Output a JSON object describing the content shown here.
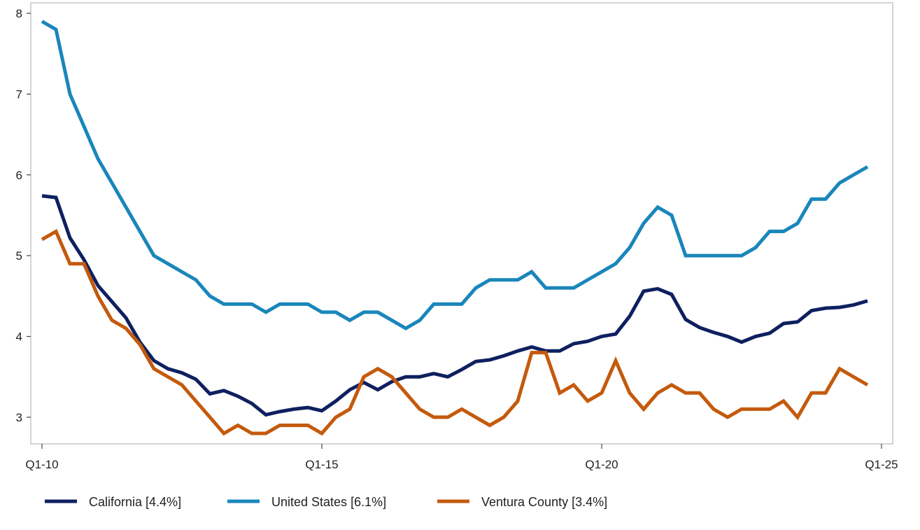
{
  "chart_data": {
    "type": "line",
    "title": "",
    "xlabel": "",
    "ylabel": "",
    "xlim": [
      0,
      60
    ],
    "ylim": [
      2.67,
      8.13
    ],
    "grid": false,
    "legend_position": "bottom",
    "x_ticks": [
      {
        "x": 0,
        "label": "Q1-10"
      },
      {
        "x": 20,
        "label": "Q1-15"
      },
      {
        "x": 40,
        "label": "Q1-20"
      },
      {
        "x": 60,
        "label": "Q1-25"
      }
    ],
    "y_ticks": [
      3,
      4,
      5,
      6,
      7,
      8
    ],
    "series": [
      {
        "name": "California [4.4%]",
        "color": "#0f2060",
        "values": [
          5.74,
          5.72,
          5.22,
          4.95,
          4.63,
          4.43,
          4.23,
          3.93,
          3.7,
          3.6,
          3.55,
          3.47,
          3.29,
          3.33,
          3.26,
          3.17,
          3.03,
          3.07,
          3.1,
          3.12,
          3.08,
          3.2,
          3.34,
          3.43,
          3.34,
          3.44,
          3.5,
          3.5,
          3.54,
          3.5,
          3.59,
          3.69,
          3.71,
          3.76,
          3.82,
          3.87,
          3.82,
          3.82,
          3.91,
          3.94,
          4.0,
          4.03,
          4.25,
          4.56,
          4.59,
          4.52,
          4.21,
          4.11,
          4.05,
          4.0,
          3.93,
          4.0,
          4.04,
          4.16,
          4.18,
          4.32,
          4.35,
          4.36,
          4.39,
          4.44
        ]
      },
      {
        "name": "United States [6.1%]",
        "color": "#1a86bb",
        "values": [
          7.9,
          7.8,
          7.0,
          6.6,
          6.2,
          5.9,
          5.6,
          5.3,
          5.0,
          4.9,
          4.8,
          4.7,
          4.5,
          4.4,
          4.4,
          4.4,
          4.3,
          4.4,
          4.4,
          4.4,
          4.3,
          4.3,
          4.2,
          4.3,
          4.3,
          4.2,
          4.1,
          4.2,
          4.4,
          4.4,
          4.4,
          4.6,
          4.7,
          4.7,
          4.7,
          4.8,
          4.6,
          4.6,
          4.6,
          4.7,
          4.8,
          4.9,
          5.1,
          5.4,
          5.6,
          5.5,
          5.0,
          5.0,
          5.0,
          5.0,
          5.0,
          5.1,
          5.3,
          5.3,
          5.4,
          5.7,
          5.7,
          5.9,
          6.0,
          6.1
        ]
      },
      {
        "name": "Ventura County [3.4%]",
        "color": "#c45a0d",
        "values": [
          5.2,
          5.3,
          4.9,
          4.9,
          4.5,
          4.2,
          4.1,
          3.9,
          3.6,
          3.5,
          3.4,
          3.2,
          3.0,
          2.8,
          2.9,
          2.8,
          2.8,
          2.9,
          2.9,
          2.9,
          2.8,
          3.0,
          3.1,
          3.5,
          3.6,
          3.5,
          3.3,
          3.1,
          3.0,
          3.0,
          3.1,
          3.0,
          2.9,
          3.0,
          3.2,
          3.8,
          3.8,
          3.3,
          3.4,
          3.2,
          3.3,
          3.7,
          3.3,
          3.1,
          3.3,
          3.4,
          3.3,
          3.3,
          3.1,
          3.0,
          3.1,
          3.1,
          3.1,
          3.2,
          3.0,
          3.3,
          3.3,
          3.6,
          3.5,
          3.4
        ]
      }
    ]
  }
}
